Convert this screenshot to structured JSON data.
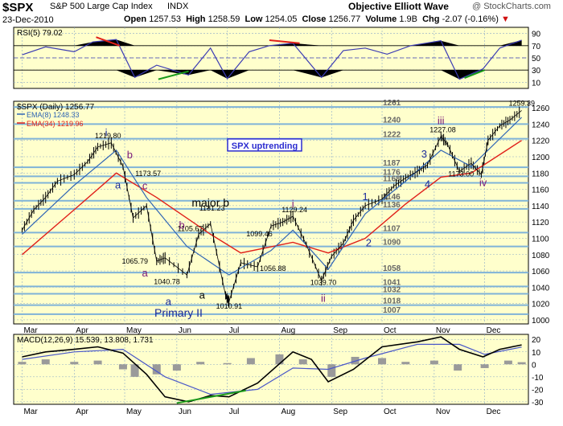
{
  "header": {
    "symbol": "$SPX",
    "description": "S&P 500 Large Cap Index",
    "exchange": "INDX",
    "date": "23-Dec-2010",
    "open_label": "Open",
    "open": "1257.53",
    "high_label": "High",
    "high": "1258.59",
    "low_label": "Low",
    "low": "1254.05",
    "close_label": "Close",
    "close": "1256.77",
    "volume_label": "Volume",
    "volume": "1.9B",
    "chg_label": "Chg",
    "chg": "-2.07 (-0.16%)",
    "chg_arrow": "▼",
    "title_right": "Objective Elliott Wave",
    "watermark": "@ StockCharts.com"
  },
  "colors": {
    "panel_bg": "#ffffcc",
    "grid": "#8aa8c8",
    "level_line": "#7fb3d8",
    "price": "#000000",
    "ema8": "#2e64b4",
    "ema34": "#e0201a",
    "rsi_line": "#3c3cb4",
    "macd": "#000000",
    "signal": "#4a58c8",
    "histogram": "#9a9a9a",
    "label_blue": "#1a2a9a",
    "label_purple": "#7a1878",
    "trend_red": "#e0201a",
    "trend_green": "#1a9a1a",
    "note_bg": "#2c2cd0"
  },
  "chart_data": [
    {
      "type": "line",
      "panel": "rsi",
      "title": "RSI(5) 79.02",
      "series": [
        {
          "name": "RSI(5)",
          "x": [
            "2010-03-01",
            "2010-03-15",
            "2010-04-01",
            "2010-04-12",
            "2010-04-26",
            "2010-05-07",
            "2010-05-20",
            "2010-06-08",
            "2010-06-21",
            "2010-07-01",
            "2010-07-14",
            "2010-07-26",
            "2010-08-09",
            "2010-08-26",
            "2010-09-08",
            "2010-09-21",
            "2010-10-04",
            "2010-10-18",
            "2010-11-05",
            "2010-11-16",
            "2010-11-30",
            "2010-12-10",
            "2010-12-23"
          ],
          "values": [
            55,
            68,
            60,
            76,
            80,
            18,
            38,
            22,
            66,
            16,
            60,
            70,
            74,
            18,
            62,
            66,
            56,
            70,
            78,
            15,
            32,
            66,
            79.02
          ]
        }
      ],
      "ylim": [
        0,
        100
      ],
      "yticks": [
        10,
        30,
        50,
        70,
        90
      ],
      "bands": [
        30,
        50,
        70
      ],
      "trendlines": [
        {
          "color": "red",
          "from": {
            "x": "2010-04-14",
            "y": 84
          },
          "to": {
            "x": "2010-04-28",
            "y": 70
          }
        },
        {
          "color": "red",
          "from": {
            "x": "2010-07-26",
            "y": 79
          },
          "to": {
            "x": "2010-08-13",
            "y": 74
          }
        },
        {
          "color": "green",
          "from": {
            "x": "2010-05-21",
            "y": 15
          },
          "to": {
            "x": "2010-06-08",
            "y": 28
          }
        },
        {
          "color": "green",
          "from": {
            "x": "2010-11-19",
            "y": 17
          },
          "to": {
            "x": "2010-12-01",
            "y": 30
          }
        }
      ]
    },
    {
      "type": "line",
      "panel": "price",
      "title": "$SPX (Daily) 1256.77",
      "legend": [
        "EMA(8) 1248.33",
        "EMA(34) 1219.96"
      ],
      "series": [
        {
          "name": "$SPX (Daily)",
          "x": [
            "2010-03-01",
            "2010-03-08",
            "2010-03-15",
            "2010-03-22",
            "2010-04-01",
            "2010-04-09",
            "2010-04-15",
            "2010-04-23",
            "2010-04-30",
            "2010-05-06",
            "2010-05-14",
            "2010-05-20",
            "2010-05-25",
            "2010-06-07",
            "2010-06-14",
            "2010-06-21",
            "2010-06-30",
            "2010-07-02",
            "2010-07-09",
            "2010-07-19",
            "2010-07-27",
            "2010-08-03",
            "2010-08-09",
            "2010-08-17",
            "2010-08-26",
            "2010-09-01",
            "2010-09-08",
            "2010-09-14",
            "2010-09-21",
            "2010-10-01",
            "2010-10-08",
            "2010-10-15",
            "2010-10-22",
            "2010-10-28",
            "2010-11-05",
            "2010-11-09",
            "2010-11-16",
            "2010-11-23",
            "2010-11-29",
            "2010-12-03",
            "2010-12-10",
            "2010-12-16",
            "2010-12-23"
          ],
          "values": [
            1110,
            1135,
            1150,
            1170,
            1178,
            1194,
            1212,
            1217,
            1188,
            1125,
            1140,
            1072,
            1076,
            1055,
            1105,
            1118,
            1030,
            1022,
            1070,
            1065,
            1115,
            1120,
            1127,
            1092,
            1048,
            1078,
            1094,
            1122,
            1140,
            1148,
            1164,
            1174,
            1182,
            1190,
            1225,
            1215,
            1182,
            1192,
            1178,
            1220,
            1238,
            1245,
            1256.77
          ]
        },
        {
          "name": "EMA(8) 1248.33",
          "x": [
            "2010-03-01",
            "2010-04-01",
            "2010-04-26",
            "2010-05-14",
            "2010-06-07",
            "2010-07-02",
            "2010-07-27",
            "2010-08-09",
            "2010-08-30",
            "2010-09-21",
            "2010-10-15",
            "2010-11-05",
            "2010-11-23",
            "2010-12-23"
          ],
          "values": [
            1105,
            1165,
            1208,
            1150,
            1090,
            1055,
            1085,
            1110,
            1062,
            1130,
            1170,
            1208,
            1188,
            1248.33
          ]
        },
        {
          "name": "EMA(34) 1219.96",
          "x": [
            "2010-03-01",
            "2010-04-01",
            "2010-04-26",
            "2010-05-20",
            "2010-06-21",
            "2010-07-09",
            "2010-08-09",
            "2010-08-30",
            "2010-09-21",
            "2010-10-15",
            "2010-11-05",
            "2010-11-23",
            "2010-12-23"
          ],
          "values": [
            1080,
            1135,
            1180,
            1150,
            1105,
            1082,
            1095,
            1082,
            1100,
            1142,
            1175,
            1180,
            1219.96
          ]
        }
      ],
      "ylim": [
        995,
        1268
      ],
      "yticks": [
        1000,
        1020,
        1040,
        1060,
        1080,
        1100,
        1120,
        1140,
        1160,
        1180,
        1200,
        1220,
        1240,
        1260
      ],
      "levels": [
        1261,
        1240,
        1222,
        1187,
        1176,
        1168,
        1146,
        1136,
        1107,
        1090,
        1058,
        1041,
        1032,
        1018,
        1007
      ],
      "price_labels": [
        {
          "text": "1219.80",
          "x": "2010-04-20",
          "y": 1219.8
        },
        {
          "text": "1173.57",
          "x": "2010-05-14",
          "y": 1173.57
        },
        {
          "text": "1131.23",
          "x": "2010-06-21",
          "y": 1131.23
        },
        {
          "text": "1105.67",
          "x": "2010-06-08",
          "y": 1105.67
        },
        {
          "text": "1099.46",
          "x": "2010-07-19",
          "y": 1099.46
        },
        {
          "text": "1129.24",
          "x": "2010-08-09",
          "y": 1129.24
        },
        {
          "text": "1065.79",
          "x": "2010-05-06",
          "y": 1065.79
        },
        {
          "text": "1056.88",
          "x": "2010-07-27",
          "y": 1056.88
        },
        {
          "text": "1040.78",
          "x": "2010-05-25",
          "y": 1040.78
        },
        {
          "text": "1039.70",
          "x": "2010-08-26",
          "y": 1039.7
        },
        {
          "text": "1010.91",
          "x": "2010-07-01",
          "y": 1010.91
        },
        {
          "text": "1227.08",
          "x": "2010-11-05",
          "y": 1227.08
        },
        {
          "text": "1173.00",
          "x": "2010-11-16",
          "y": 1173.0
        },
        {
          "text": "1259.39",
          "x": "2010-12-22",
          "y": 1259.39
        }
      ],
      "wave_labels": [
        {
          "text": "i",
          "color": "blue",
          "x": "2010-04-20",
          "y": 1225
        },
        {
          "text": "b",
          "color": "purple",
          "x": "2010-05-04",
          "y": 1198
        },
        {
          "text": "a",
          "color": "blue",
          "x": "2010-04-27",
          "y": 1161
        },
        {
          "text": "c",
          "color": "purple",
          "x": "2010-05-13",
          "y": 1160
        },
        {
          "text": "major b",
          "color": "black",
          "x": "2010-06-21",
          "y": 1139
        },
        {
          "text": "b",
          "color": "purple",
          "x": "2010-06-04",
          "y": 1112
        },
        {
          "text": "a",
          "color": "purple",
          "x": "2010-05-13",
          "y": 1053
        },
        {
          "text": "a",
          "color": "blue",
          "x": "2010-05-27",
          "y": 1018
        },
        {
          "text": "a",
          "color": "black",
          "x": "2010-06-16",
          "y": 1026
        },
        {
          "text": "Primary II",
          "color": "blue",
          "x": "2010-06-02",
          "y": 1004
        },
        {
          "text": "i",
          "color": "purple",
          "x": "2010-08-09",
          "y": 1138
        },
        {
          "text": "ii",
          "color": "purple",
          "x": "2010-08-27",
          "y": 1022
        },
        {
          "text": "1",
          "color": "blue",
          "x": "2010-09-21",
          "y": 1147
        },
        {
          "text": "2",
          "color": "blue",
          "x": "2010-09-23",
          "y": 1090
        },
        {
          "text": "3",
          "color": "blue",
          "x": "2010-10-26",
          "y": 1199
        },
        {
          "text": "4",
          "color": "blue",
          "x": "2010-10-28",
          "y": 1162
        },
        {
          "text": "iii",
          "color": "purple",
          "x": "2010-11-05",
          "y": 1240
        },
        {
          "text": "iv",
          "color": "purple",
          "x": "2010-11-30",
          "y": 1164
        }
      ],
      "annotations": [
        "SPX uptrending"
      ]
    },
    {
      "type": "line",
      "panel": "macd",
      "title": "MACD(12,26,9) 15.539, 13.808, 1.731",
      "series": [
        {
          "name": "MACD",
          "x": [
            "2010-03-01",
            "2010-03-15",
            "2010-04-01",
            "2010-04-15",
            "2010-04-30",
            "2010-05-14",
            "2010-05-25",
            "2010-06-08",
            "2010-06-21",
            "2010-07-02",
            "2010-07-19",
            "2010-08-09",
            "2010-08-20",
            "2010-08-30",
            "2010-09-14",
            "2010-10-01",
            "2010-10-22",
            "2010-11-05",
            "2010-11-16",
            "2010-11-30",
            "2010-12-10",
            "2010-12-23"
          ],
          "values": [
            6,
            10,
            12,
            14,
            9,
            -8,
            -26,
            -30,
            -25,
            -26,
            -15,
            10,
            4,
            -14,
            -4,
            14,
            18,
            22,
            12,
            6,
            12,
            15.539
          ]
        },
        {
          "name": "Signal",
          "x": [
            "2010-03-01",
            "2010-04-01",
            "2010-04-30",
            "2010-05-25",
            "2010-06-21",
            "2010-07-19",
            "2010-08-09",
            "2010-08-30",
            "2010-09-21",
            "2010-10-22",
            "2010-11-16",
            "2010-12-01",
            "2010-12-23"
          ],
          "values": [
            4,
            10,
            12,
            -10,
            -24,
            -20,
            -3,
            -4,
            5,
            16,
            16,
            8,
            13.808
          ]
        },
        {
          "name": "Histogram",
          "x": [
            "2010-03-01",
            "2010-03-15",
            "2010-04-01",
            "2010-04-15",
            "2010-04-30",
            "2010-05-07",
            "2010-05-20",
            "2010-06-01",
            "2010-06-15",
            "2010-07-01",
            "2010-07-15",
            "2010-08-01",
            "2010-08-15",
            "2010-09-01",
            "2010-09-15",
            "2010-10-01",
            "2010-10-15",
            "2010-11-01",
            "2010-11-15",
            "2010-12-01",
            "2010-12-15",
            "2010-12-23"
          ],
          "values": [
            2,
            4,
            2,
            3,
            -4,
            -10,
            -8,
            -5,
            2,
            1,
            5,
            8,
            4,
            -10,
            6,
            5,
            2,
            3,
            -5,
            -3,
            3,
            1.731
          ]
        }
      ],
      "ylim": [
        -32,
        24
      ],
      "yticks": [
        -30,
        -20,
        -10,
        0,
        10,
        20
      ],
      "trendlines": [
        {
          "color": "green",
          "from": {
            "x": "2010-06-01",
            "y": -31
          },
          "to": {
            "x": "2010-07-12",
            "y": -21
          }
        }
      ]
    }
  ],
  "x_axis": {
    "ticks": [
      {
        "label": "Mar",
        "x": "2010-03-01"
      },
      {
        "label": "Apr",
        "x": "2010-04-01"
      },
      {
        "label": "May",
        "x": "2010-05-01"
      },
      {
        "label": "Jun",
        "x": "2010-06-01"
      },
      {
        "label": "Jul",
        "x": "2010-07-01"
      },
      {
        "label": "Aug",
        "x": "2010-08-01"
      },
      {
        "label": "Sep",
        "x": "2010-09-01"
      },
      {
        "label": "Oct",
        "x": "2010-10-01"
      },
      {
        "label": "Nov",
        "x": "2010-11-01"
      },
      {
        "label": "Dec",
        "x": "2010-12-01"
      }
    ],
    "range": [
      "2010-02-24",
      "2010-12-27"
    ]
  }
}
